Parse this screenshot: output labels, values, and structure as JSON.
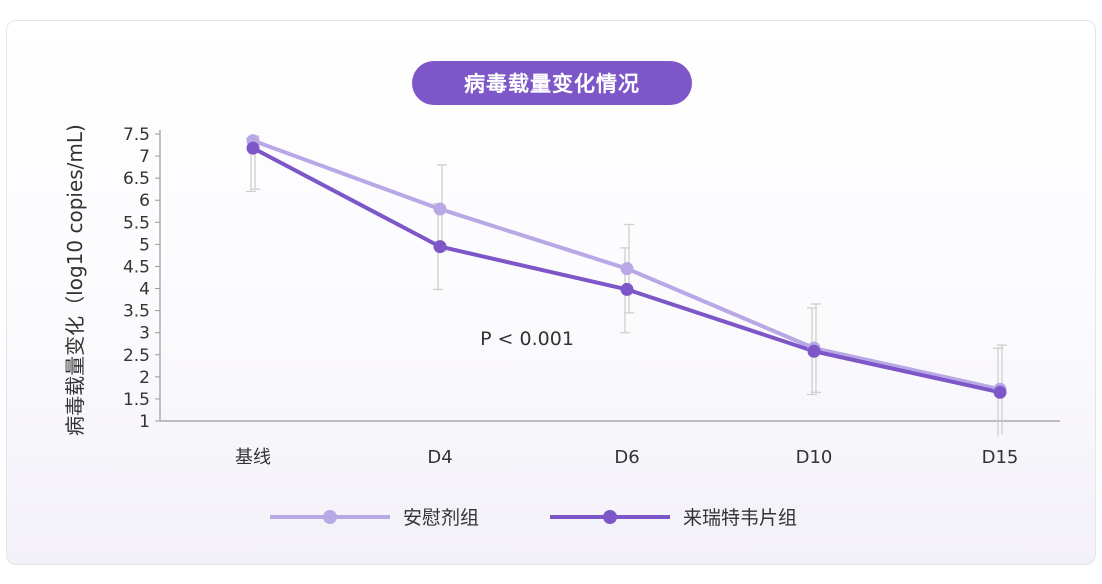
{
  "chart_data": {
    "type": "line",
    "title": "病毒载量变化情况",
    "ylabel": "病毒载量变化（log10 copies/mL)",
    "xlabel": "",
    "categories": [
      "基线",
      "D4",
      "D6",
      "D10",
      "D15"
    ],
    "ylim": [
      1,
      7.5
    ],
    "yticks": [
      "1",
      "1.5",
      "2",
      "2.5",
      "3",
      "3.5",
      "4",
      "4.5",
      "5",
      "5.5",
      "6",
      "6.5",
      "7",
      "7.5"
    ],
    "annotation": "P < 0.001",
    "legend_position": "bottom",
    "series": [
      {
        "name": "安慰剂组",
        "color": "#b9a8e6",
        "values": [
          7.35,
          5.8,
          4.45,
          2.65,
          1.72
        ],
        "error_low": [
          6.25,
          4.85,
          3.45,
          1.65,
          0.7
        ],
        "error_high": [
          7.45,
          6.8,
          5.45,
          3.65,
          2.72
        ]
      },
      {
        "name": "来瑞特韦片组",
        "color": "#7d57c8",
        "values": [
          7.18,
          4.95,
          3.98,
          2.58,
          1.65
        ],
        "error_low": [
          6.2,
          3.98,
          3.0,
          1.6,
          0.65
        ],
        "error_high": [
          7.4,
          5.92,
          4.92,
          3.56,
          2.65
        ]
      }
    ]
  }
}
